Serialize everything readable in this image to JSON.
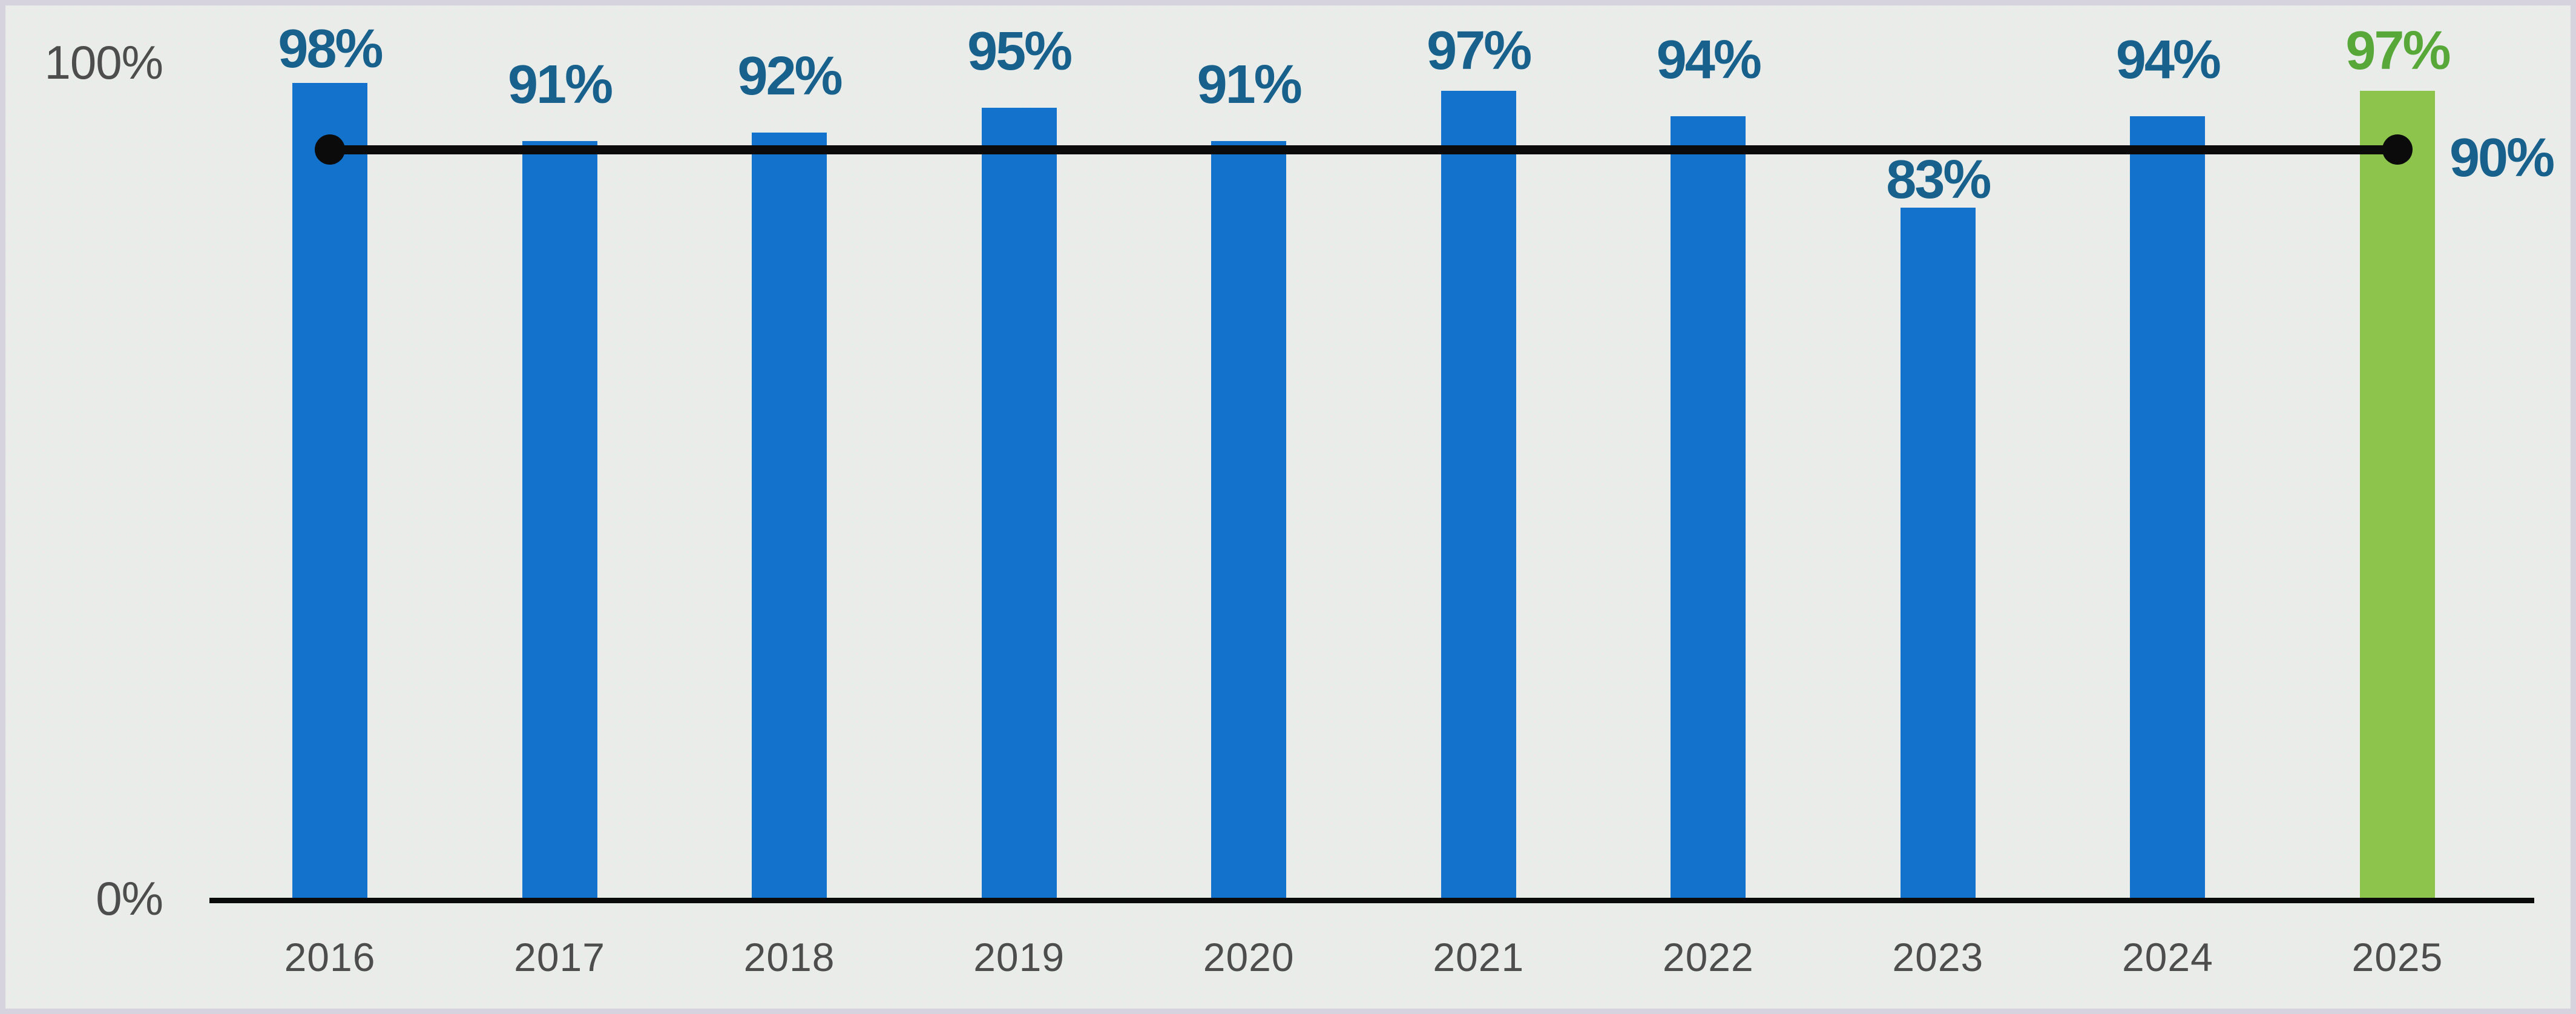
{
  "chart_data": {
    "type": "bar",
    "title": "",
    "xlabel": "",
    "ylabel": "",
    "ylim": [
      0,
      100
    ],
    "grid": false,
    "legend": "none",
    "categories": [
      "2016",
      "2017",
      "2018",
      "2019",
      "2020",
      "2021",
      "2022",
      "2023",
      "2024",
      "2025"
    ],
    "series": [
      {
        "name": "annual-percentage-bars",
        "type": "bar",
        "values": [
          98,
          91,
          92,
          95,
          91,
          97,
          94,
          83,
          94,
          97
        ],
        "labels": [
          "98%",
          "91%",
          "92%",
          "95%",
          "91%",
          "97%",
          "94%",
          "83%",
          "94%",
          "97%"
        ]
      },
      {
        "name": "reference-line",
        "type": "line",
        "value": 90,
        "label": "90%",
        "x_start": "2016",
        "x_end": "2025",
        "markers": "endpoints"
      }
    ],
    "yticks": [
      {
        "value": 100,
        "label": "100%"
      },
      {
        "value": 0,
        "label": "0%"
      }
    ],
    "highlight_category": "2025"
  },
  "colors": {
    "bar_blue": "#1272cc",
    "bar_green": "#8cc44c",
    "value_label_teal": "#17618c",
    "value_label_green": "#57a839",
    "axis_text_gray": "#4d4d4d",
    "line_black": "#0b0b0b",
    "background": "#e9ece9",
    "frame_border": "#d7d3de"
  }
}
